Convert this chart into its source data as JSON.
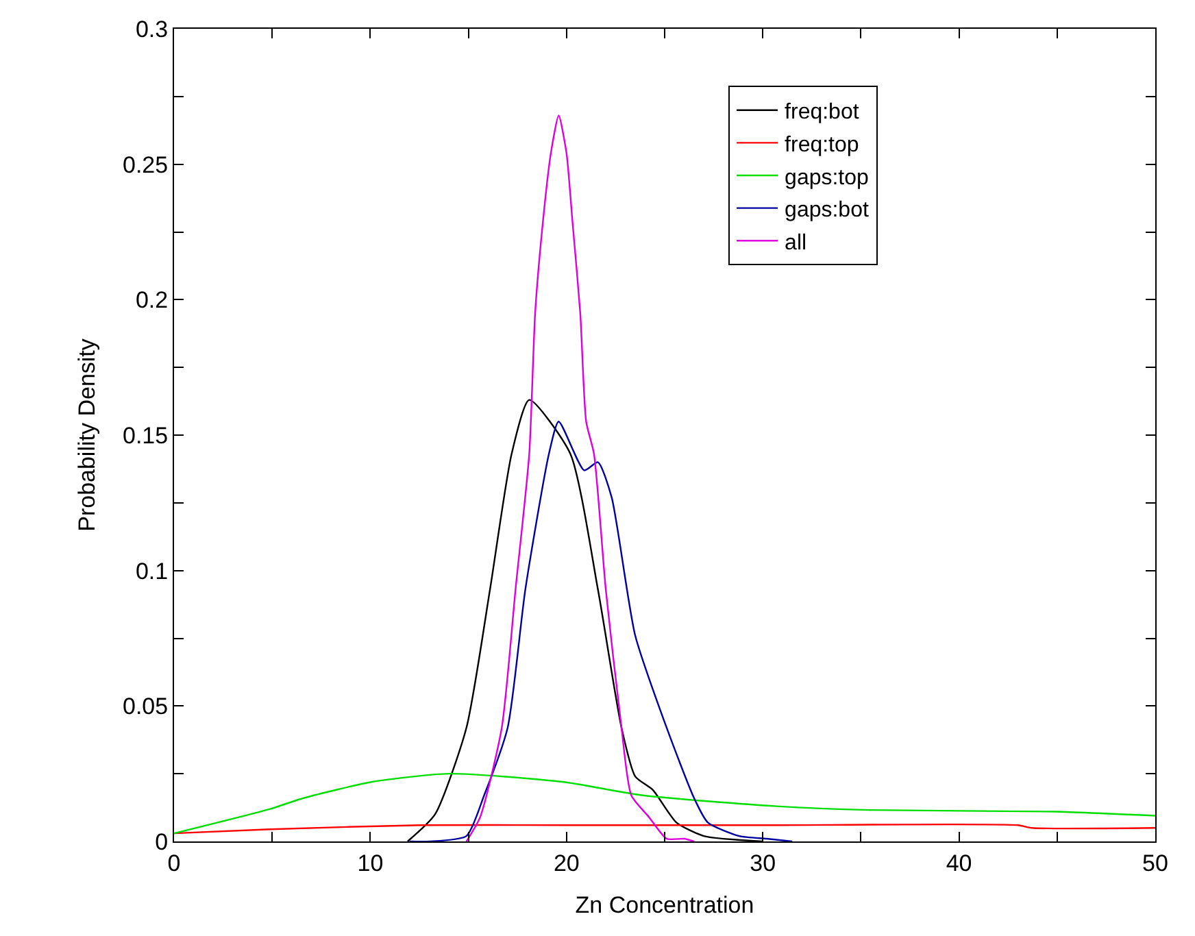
{
  "chart_data": {
    "type": "line",
    "xlabel": "Zn Concentration",
    "ylabel": "Probability Density",
    "xlim": [
      0,
      50
    ],
    "ylim": [
      0,
      0.3
    ],
    "xticks": [
      0,
      {
        "value": 5,
        "label": null
      },
      10,
      {
        "value": 15,
        "label": null
      },
      20,
      {
        "value": 25,
        "label": null
      },
      30,
      {
        "value": 35,
        "label": null
      },
      40,
      {
        "value": 45,
        "label": null
      },
      50
    ],
    "yticks": [
      0,
      {
        "value": 0.025,
        "label": null
      },
      0.05,
      {
        "value": 0.075,
        "label": null
      },
      0.1,
      {
        "value": 0.125,
        "label": null
      },
      0.15,
      {
        "value": 0.175,
        "label": null
      },
      0.2,
      {
        "value": 0.225,
        "label": null
      },
      0.25,
      {
        "value": 0.275,
        "label": null
      },
      0.3
    ],
    "legend": "top right",
    "marker": "none",
    "line_style": "solid",
    "series": [
      {
        "name": "freq:bot",
        "color": "#000000",
        "x": [
          11.9,
          13.3,
          14.9,
          16.1,
          17.2,
          18.1,
          20.2,
          21.6,
          22.8,
          23.5,
          24.4,
          25.6,
          27.0,
          30.0
        ],
        "values": [
          0,
          0.01,
          0.042,
          0.093,
          0.143,
          0.163,
          0.143,
          0.093,
          0.042,
          0.024,
          0.019,
          0.007,
          0.002,
          0
        ]
      },
      {
        "name": "freq:top",
        "color": "#ff0000",
        "x": [
          0,
          4.9,
          12.6,
          20,
          30,
          43,
          43.7,
          50
        ],
        "values": [
          0.003,
          0.0045,
          0.006,
          0.006,
          0.006,
          0.006,
          0.005,
          0.005
        ]
      },
      {
        "name": "gaps:top",
        "color": "#00dd00",
        "x": [
          0,
          4.9,
          6.6,
          10.1,
          14.0,
          19.8,
          23.9,
          30.7,
          35.4,
          44.9,
          50
        ],
        "values": [
          0.003,
          0.012,
          0.016,
          0.022,
          0.025,
          0.022,
          0.017,
          0.013,
          0.0116,
          0.011,
          0.0095
        ]
      },
      {
        "name": "gaps:bot",
        "color": "#0000a0",
        "x": [
          12,
          13.0,
          14.9,
          15.8,
          17.0,
          17.9,
          19.1,
          19.6,
          20.9,
          21.6,
          22.3,
          23.5,
          25.1,
          26.5,
          27.2,
          28.8,
          30.2,
          31.5
        ],
        "values": [
          0,
          0,
          0.002,
          0.017,
          0.042,
          0.093,
          0.143,
          0.155,
          0.137,
          0.14,
          0.127,
          0.076,
          0.042,
          0.016,
          0.007,
          0.002,
          0.001,
          0
        ]
      },
      {
        "name": "all",
        "color": "#dd00dd",
        "x": [
          14.9,
          15.6,
          16.7,
          17.4,
          18.1,
          18.4,
          18.8,
          19.2,
          19.6,
          20.0,
          20.3,
          20.7,
          21.0,
          21.4,
          22.0,
          22.8,
          23.3,
          24.2,
          25.1,
          26.0,
          26.5
        ],
        "values": [
          0,
          0.009,
          0.042,
          0.093,
          0.143,
          0.195,
          0.229,
          0.254,
          0.268,
          0.254,
          0.229,
          0.195,
          0.155,
          0.143,
          0.093,
          0.042,
          0.017,
          0.009,
          0.001,
          0.001,
          0
        ]
      }
    ]
  }
}
